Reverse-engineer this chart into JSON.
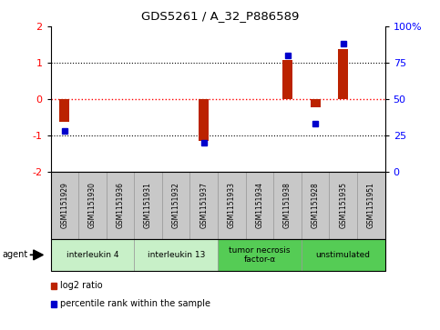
{
  "title": "GDS5261 / A_32_P886589",
  "samples": [
    "GSM1151929",
    "GSM1151930",
    "GSM1151936",
    "GSM1151931",
    "GSM1151932",
    "GSM1151937",
    "GSM1151933",
    "GSM1151934",
    "GSM1151938",
    "GSM1151928",
    "GSM1151935",
    "GSM1151951"
  ],
  "log2_ratio": [
    -0.62,
    0.0,
    0.0,
    0.0,
    0.0,
    -1.15,
    0.0,
    0.0,
    1.08,
    -0.22,
    1.38,
    0.0
  ],
  "percentile_rank": [
    28,
    0,
    0,
    0,
    0,
    20,
    0,
    0,
    80,
    33,
    88,
    0
  ],
  "groups": [
    {
      "label": "interleukin 4",
      "start": 0,
      "end": 3,
      "color": "#c8f0c8"
    },
    {
      "label": "interleukin 13",
      "start": 3,
      "end": 6,
      "color": "#c8f0c8"
    },
    {
      "label": "tumor necrosis\nfactor-α",
      "start": 6,
      "end": 9,
      "color": "#55cc55"
    },
    {
      "label": "unstimulated",
      "start": 9,
      "end": 12,
      "color": "#55cc55"
    }
  ],
  "ylim": [
    -2,
    2
  ],
  "y2lim": [
    0,
    100
  ],
  "yticks": [
    -2,
    -1,
    0,
    1,
    2
  ],
  "y2ticks": [
    0,
    25,
    50,
    75,
    100
  ],
  "bar_color": "#bb2200",
  "dot_color": "#0000cc",
  "sample_bg": "#c8c8c8",
  "agent_label": "agent",
  "legend_items": [
    {
      "label": "log2 ratio",
      "color": "#bb2200"
    },
    {
      "label": "percentile rank within the sample",
      "color": "#0000cc"
    }
  ],
  "fig_width": 4.83,
  "fig_height": 3.63,
  "dpi": 100
}
